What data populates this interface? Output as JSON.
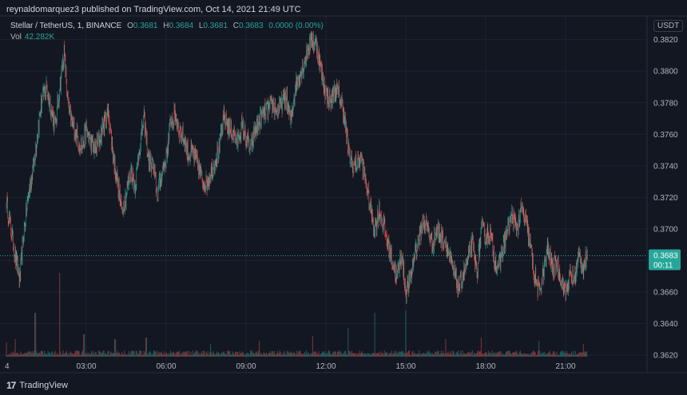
{
  "header": {
    "published": "reynaldomarquez3 published on TradingView.com, Oct 14, 2021 21:49 UTC"
  },
  "legend": {
    "symbol": "Stellar / TetherUS, 1, BINANCE",
    "o_label": "O",
    "o_value": "0.3681",
    "h_label": "H",
    "h_value": "0.3684",
    "l_label": "L",
    "l_value": "0.3681",
    "c_label": "C",
    "c_value": "0.3683",
    "change": "0.0000 (0.00%)",
    "vol_label": "Vol",
    "vol_value": "42.282K"
  },
  "axis": {
    "unit": "USDT"
  },
  "footer": {
    "brand": "TradingView"
  },
  "colors": {
    "up": "#26a69a",
    "down": "#ef5350",
    "background": "#131722",
    "grid": "#1f2330",
    "axis_text": "#b2b5be"
  },
  "chart_data": {
    "type": "candlestick",
    "title": "Stellar / TetherUS, 1, BINANCE",
    "ylabel": "USDT",
    "ylim": [
      0.3615,
      0.3835
    ],
    "y_ticks": [
      "0.3820",
      "0.3800",
      "0.3780",
      "0.3760",
      "0.3740",
      "0.3720",
      "0.3700",
      "0.3680",
      "0.3660",
      "0.3640",
      "0.3620"
    ],
    "x_ticks": [
      "4",
      "03:00",
      "06:00",
      "09:00",
      "12:00",
      "15:00",
      "18:00",
      "21:00"
    ],
    "last_price": "0.3683",
    "last_price_countdown": "00:11",
    "price_path": [
      [
        "00:00",
        0.3718
      ],
      [
        "00:10",
        0.37
      ],
      [
        "00:20",
        0.3683
      ],
      [
        "00:30",
        0.3668
      ],
      [
        "00:40",
        0.37
      ],
      [
        "00:50",
        0.3722
      ],
      [
        "01:00",
        0.3738
      ],
      [
        "01:10",
        0.376
      ],
      [
        "01:20",
        0.3782
      ],
      [
        "01:30",
        0.379
      ],
      [
        "01:40",
        0.3777
      ],
      [
        "01:50",
        0.3765
      ],
      [
        "02:00",
        0.379
      ],
      [
        "02:10",
        0.3812
      ],
      [
        "02:20",
        0.3775
      ],
      [
        "02:30",
        0.3765
      ],
      [
        "02:40",
        0.3758
      ],
      [
        "02:50",
        0.3752
      ],
      [
        "03:00",
        0.3762
      ],
      [
        "03:10",
        0.3755
      ],
      [
        "03:20",
        0.375
      ],
      [
        "03:30",
        0.3757
      ],
      [
        "03:40",
        0.3767
      ],
      [
        "03:50",
        0.3774
      ],
      [
        "04:00",
        0.3748
      ],
      [
        "04:10",
        0.373
      ],
      [
        "04:20",
        0.3712
      ],
      [
        "04:30",
        0.3722
      ],
      [
        "04:40",
        0.3737
      ],
      [
        "04:50",
        0.3728
      ],
      [
        "05:00",
        0.3752
      ],
      [
        "05:10",
        0.377
      ],
      [
        "05:20",
        0.3744
      ],
      [
        "05:30",
        0.374
      ],
      [
        "05:40",
        0.3722
      ],
      [
        "05:50",
        0.3736
      ],
      [
        "06:00",
        0.3745
      ],
      [
        "06:10",
        0.3768
      ],
      [
        "06:20",
        0.3772
      ],
      [
        "06:30",
        0.3763
      ],
      [
        "06:40",
        0.3757
      ],
      [
        "06:50",
        0.3747
      ],
      [
        "07:00",
        0.3748
      ],
      [
        "07:10",
        0.3742
      ],
      [
        "07:20",
        0.3732
      ],
      [
        "07:30",
        0.3728
      ],
      [
        "07:40",
        0.3735
      ],
      [
        "07:50",
        0.3743
      ],
      [
        "08:00",
        0.3752
      ],
      [
        "08:10",
        0.377
      ],
      [
        "08:20",
        0.3765
      ],
      [
        "08:30",
        0.3762
      ],
      [
        "08:40",
        0.3755
      ],
      [
        "08:50",
        0.3765
      ],
      [
        "09:00",
        0.3758
      ],
      [
        "09:10",
        0.375
      ],
      [
        "09:20",
        0.3762
      ],
      [
        "09:30",
        0.3768
      ],
      [
        "09:40",
        0.3773
      ],
      [
        "09:50",
        0.3776
      ],
      [
        "10:00",
        0.3779
      ],
      [
        "10:10",
        0.3774
      ],
      [
        "10:20",
        0.3779
      ],
      [
        "10:30",
        0.3784
      ],
      [
        "10:40",
        0.3768
      ],
      [
        "10:50",
        0.3788
      ],
      [
        "11:00",
        0.3798
      ],
      [
        "11:10",
        0.3804
      ],
      [
        "11:20",
        0.3815
      ],
      [
        "11:30",
        0.382
      ],
      [
        "11:40",
        0.3815
      ],
      [
        "11:50",
        0.3798
      ],
      [
        "12:00",
        0.3786
      ],
      [
        "12:10",
        0.378
      ],
      [
        "12:20",
        0.3788
      ],
      [
        "12:30",
        0.3785
      ],
      [
        "12:40",
        0.3775
      ],
      [
        "12:50",
        0.375
      ],
      [
        "13:00",
        0.374
      ],
      [
        "13:10",
        0.3742
      ],
      [
        "13:20",
        0.3745
      ],
      [
        "13:30",
        0.373
      ],
      [
        "13:40",
        0.3712
      ],
      [
        "13:50",
        0.37
      ],
      [
        "14:00",
        0.3712
      ],
      [
        "14:10",
        0.3703
      ],
      [
        "14:20",
        0.369
      ],
      [
        "14:30",
        0.368
      ],
      [
        "14:40",
        0.3668
      ],
      [
        "14:50",
        0.3685
      ],
      [
        "15:00",
        0.366
      ],
      [
        "15:10",
        0.3668
      ],
      [
        "15:20",
        0.3685
      ],
      [
        "15:30",
        0.3695
      ],
      [
        "15:40",
        0.3705
      ],
      [
        "15:50",
        0.37
      ],
      [
        "16:00",
        0.369
      ],
      [
        "16:10",
        0.37
      ],
      [
        "16:20",
        0.3695
      ],
      [
        "16:30",
        0.3692
      ],
      [
        "16:40",
        0.368
      ],
      [
        "16:50",
        0.367
      ],
      [
        "17:00",
        0.3663
      ],
      [
        "17:10",
        0.3672
      ],
      [
        "17:20",
        0.368
      ],
      [
        "17:30",
        0.369
      ],
      [
        "17:40",
        0.3672
      ],
      [
        "17:50",
        0.37
      ],
      [
        "18:00",
        0.3695
      ],
      [
        "18:10",
        0.3698
      ],
      [
        "18:20",
        0.368
      ],
      [
        "18:30",
        0.3675
      ],
      [
        "18:40",
        0.369
      ],
      [
        "18:50",
        0.37
      ],
      [
        "19:00",
        0.3708
      ],
      [
        "19:10",
        0.37
      ],
      [
        "19:20",
        0.3712
      ],
      [
        "19:30",
        0.3705
      ],
      [
        "19:40",
        0.369
      ],
      [
        "19:50",
        0.367
      ],
      [
        "20:00",
        0.366
      ],
      [
        "20:10",
        0.3672
      ],
      [
        "20:20",
        0.3688
      ],
      [
        "20:30",
        0.3675
      ],
      [
        "20:40",
        0.3678
      ],
      [
        "20:50",
        0.3668
      ],
      [
        "21:00",
        0.366
      ],
      [
        "21:10",
        0.367
      ],
      [
        "21:20",
        0.3668
      ],
      [
        "21:30",
        0.3683
      ],
      [
        "21:40",
        0.3676
      ],
      [
        "21:49",
        0.3683
      ]
    ],
    "volume_spikes": [
      [
        "00:00",
        18
      ],
      [
        "00:20",
        22
      ],
      [
        "01:05",
        55
      ],
      [
        "02:00",
        105
      ],
      [
        "02:55",
        28
      ],
      [
        "04:05",
        22
      ],
      [
        "05:15",
        24
      ],
      [
        "07:40",
        16
      ],
      [
        "09:30",
        20
      ],
      [
        "11:30",
        26
      ],
      [
        "12:50",
        36
      ],
      [
        "13:50",
        55
      ],
      [
        "15:00",
        58
      ],
      [
        "16:30",
        22
      ],
      [
        "17:50",
        24
      ],
      [
        "20:00",
        20
      ],
      [
        "21:40",
        16
      ]
    ],
    "grid": true
  }
}
